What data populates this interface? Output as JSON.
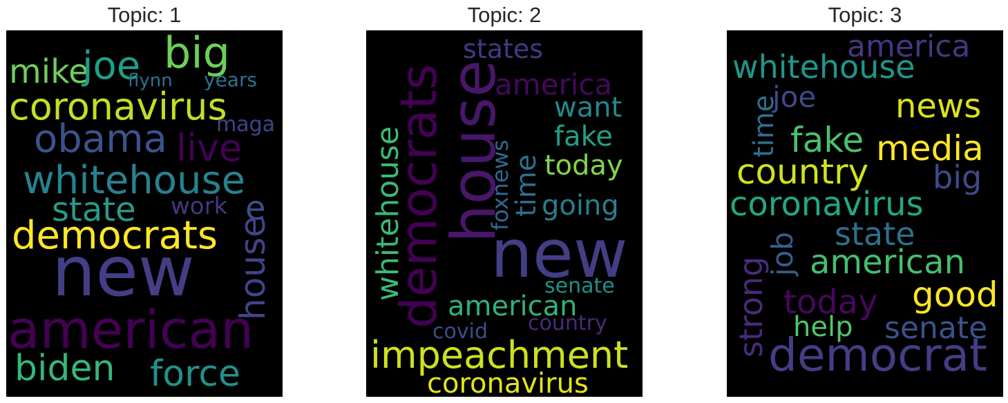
{
  "panels": [
    {
      "title": "Topic: 1",
      "words": [
        "mike",
        "joe",
        "big",
        "flynn",
        "years",
        "coronavirus",
        "maga",
        "obama",
        "live",
        "whitehouse",
        "state",
        "work",
        "e",
        "democrats",
        "house",
        "new",
        "american",
        "biden",
        "force"
      ],
      "colors": {
        "purple": "#440154",
        "indigo": "#482878",
        "blue": "#3e4a89",
        "teal": "#26828e",
        "green": "#35b779",
        "lime": "#6ece58",
        "yellow": "#fde725",
        "yellowgreen": "#cbe11e"
      }
    },
    {
      "title": "Topic: 2",
      "words": [
        "states",
        "america",
        "democrats",
        "house",
        "want",
        "fake",
        "whitehouse",
        "time",
        "foxnews",
        "today",
        "going",
        "new",
        "senate",
        "american",
        "covid",
        "country",
        "impeachment",
        "coronavirus"
      ]
    },
    {
      "title": "Topic: 3",
      "words": [
        "america",
        "whitehouse",
        "joe",
        "time",
        "news",
        "fake",
        "media",
        "country",
        "big",
        "coronavirus",
        "state",
        "job",
        "strong",
        "american",
        "today",
        "good",
        "help",
        "senate",
        "democrat"
      ]
    }
  ]
}
